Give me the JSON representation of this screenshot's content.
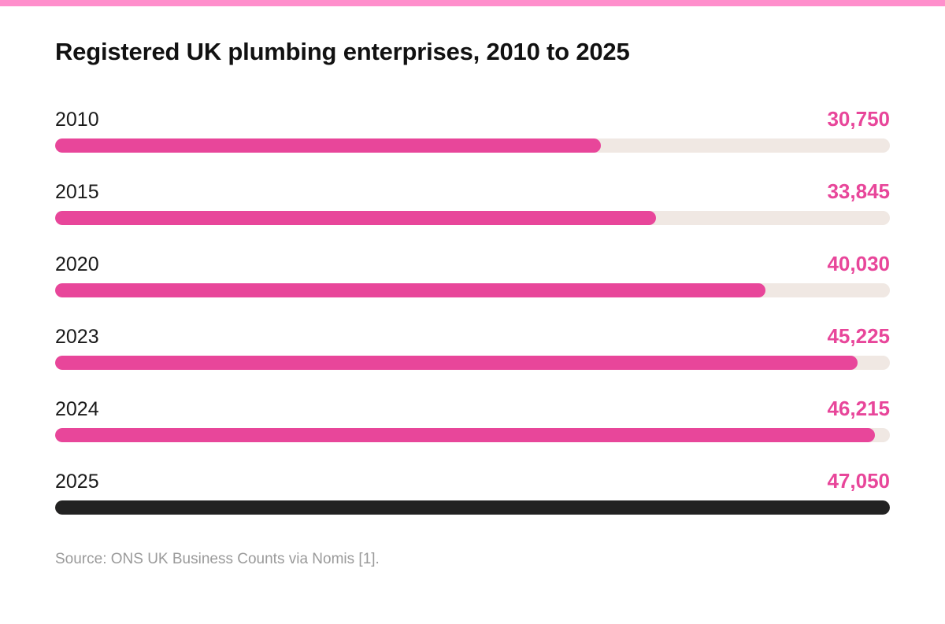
{
  "colors": {
    "accent": "#e8469a",
    "top_strip": "#ff8fcc",
    "track": "#f0e8e3",
    "highlight": "#222222",
    "value_text": "#e8469a",
    "source_text": "#9a9a9a"
  },
  "chart_data": {
    "type": "bar",
    "orientation": "horizontal",
    "title": "Registered UK plumbing enterprises, 2010 to 2025",
    "categories": [
      "2010",
      "2015",
      "2020",
      "2023",
      "2024",
      "2025"
    ],
    "values": [
      30750,
      33845,
      40030,
      45225,
      46215,
      47050
    ],
    "value_labels": [
      "30,750",
      "33,845",
      "40,030",
      "45,225",
      "46,215",
      "47,050"
    ],
    "xlim": [
      0,
      47050
    ],
    "highlighted_category": "2025",
    "grid": false
  },
  "source": "Source: ONS UK Business Counts via Nomis [1]."
}
